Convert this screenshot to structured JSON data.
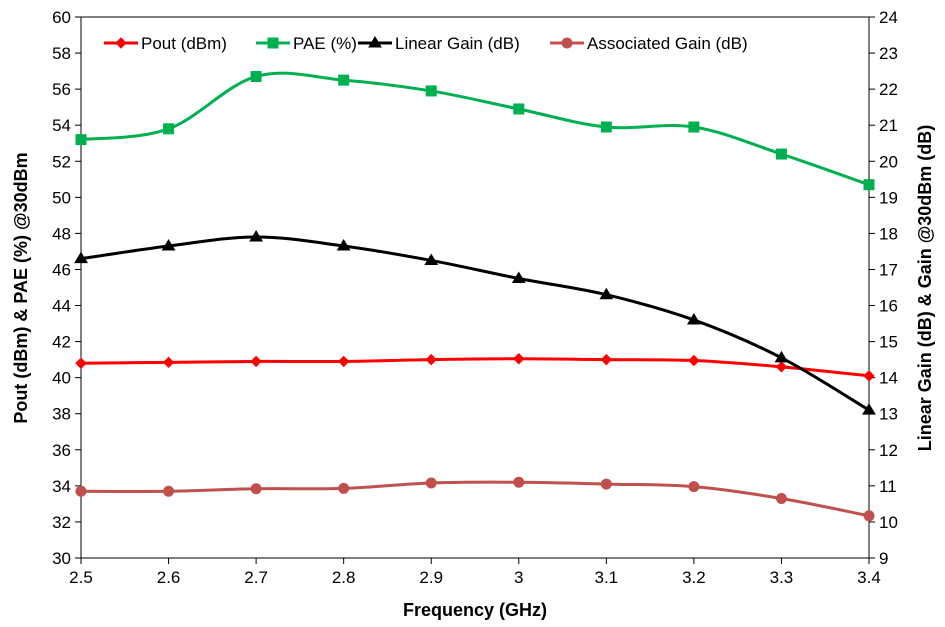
{
  "chart_data": {
    "type": "line",
    "title": "",
    "xlabel": "Frequency (GHz)",
    "ylabel_left": "Pout (dBm) & PAE (%) @30dBm",
    "ylabel_right": "Linear Gain (dB) & Gain @30dBm (dB)",
    "xlim": [
      2.5,
      3.4
    ],
    "ylim_left": [
      30,
      60
    ],
    "ylim_right": [
      9,
      24
    ],
    "x_ticks": [
      "2.5",
      "2.6",
      "2.7",
      "2.8",
      "2.9",
      "3",
      "3.1",
      "3.2",
      "3.3",
      "3.4"
    ],
    "y_left_ticks": [
      "30",
      "32",
      "34",
      "36",
      "38",
      "40",
      "42",
      "44",
      "46",
      "48",
      "50",
      "52",
      "54",
      "56",
      "58",
      "60"
    ],
    "y_right_ticks": [
      "9",
      "10",
      "11",
      "12",
      "13",
      "14",
      "15",
      "16",
      "17",
      "18",
      "19",
      "20",
      "21",
      "22",
      "23",
      "24"
    ],
    "x": [
      2.5,
      2.6,
      2.7,
      2.8,
      2.9,
      3.0,
      3.1,
      3.2,
      3.3,
      3.4
    ],
    "grid": false,
    "legend_position": "top",
    "series": [
      {
        "name": "Pout (dBm)",
        "axis": "left",
        "color": "#ff0000",
        "marker": "diamond",
        "values": [
          40.8,
          40.85,
          40.9,
          40.9,
          41.0,
          41.05,
          41.0,
          40.95,
          40.6,
          40.1
        ]
      },
      {
        "name": "PAE (%)",
        "axis": "left",
        "color": "#00b050",
        "marker": "square",
        "values": [
          53.2,
          53.8,
          56.7,
          56.5,
          55.9,
          54.9,
          53.9,
          53.9,
          52.4,
          50.7
        ]
      },
      {
        "name": "Linear Gain (dB)",
        "axis": "right",
        "color": "#000000",
        "marker": "triangle",
        "values": [
          17.3,
          17.65,
          17.9,
          17.65,
          17.25,
          16.75,
          16.3,
          15.6,
          14.55,
          13.1
        ]
      },
      {
        "name": "Associated Gain (dB)",
        "axis": "right",
        "color": "#c0504d",
        "marker": "circle",
        "values": [
          10.85,
          10.85,
          10.92,
          10.93,
          11.08,
          11.1,
          11.05,
          10.98,
          10.65,
          10.17
        ]
      }
    ]
  }
}
